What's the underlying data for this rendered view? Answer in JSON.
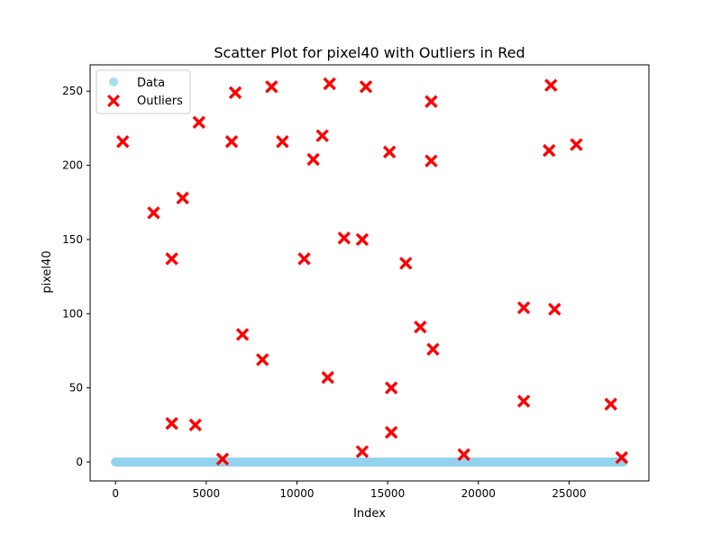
{
  "chart_data": {
    "type": "scatter",
    "title": "Scatter Plot for pixel40 with Outliers in Red",
    "xlabel": "Index",
    "ylabel": "pixel40",
    "xlim": [
      -1400,
      29400
    ],
    "ylim": [
      -12.75,
      267.75
    ],
    "xticks": [
      0,
      5000,
      10000,
      15000,
      20000,
      25000
    ],
    "yticks": [
      0,
      50,
      100,
      150,
      200,
      250
    ],
    "grid": false,
    "legend_position": "top-left",
    "data_series": {
      "name": "Data",
      "color": "#87ceeb",
      "x_range": [
        0,
        27999
      ],
      "y_value": 0
    },
    "series": [
      {
        "name": "Outliers",
        "color": "#ff0000",
        "marker": "X",
        "points": [
          {
            "x": 400,
            "y": 216
          },
          {
            "x": 2100,
            "y": 168
          },
          {
            "x": 3100,
            "y": 137
          },
          {
            "x": 3100,
            "y": 26
          },
          {
            "x": 3700,
            "y": 178
          },
          {
            "x": 4400,
            "y": 25
          },
          {
            "x": 4600,
            "y": 229
          },
          {
            "x": 5900,
            "y": 2
          },
          {
            "x": 6400,
            "y": 216
          },
          {
            "x": 6600,
            "y": 249
          },
          {
            "x": 7000,
            "y": 86
          },
          {
            "x": 8100,
            "y": 69
          },
          {
            "x": 8600,
            "y": 253
          },
          {
            "x": 9200,
            "y": 216
          },
          {
            "x": 10400,
            "y": 137
          },
          {
            "x": 10900,
            "y": 204
          },
          {
            "x": 11400,
            "y": 220
          },
          {
            "x": 11700,
            "y": 57
          },
          {
            "x": 11800,
            "y": 255
          },
          {
            "x": 12600,
            "y": 151
          },
          {
            "x": 13600,
            "y": 150
          },
          {
            "x": 13600,
            "y": 7
          },
          {
            "x": 13800,
            "y": 253
          },
          {
            "x": 15100,
            "y": 209
          },
          {
            "x": 15200,
            "y": 50
          },
          {
            "x": 15200,
            "y": 20
          },
          {
            "x": 16000,
            "y": 134
          },
          {
            "x": 16800,
            "y": 91
          },
          {
            "x": 17400,
            "y": 203
          },
          {
            "x": 17400,
            "y": 243
          },
          {
            "x": 17500,
            "y": 76
          },
          {
            "x": 19200,
            "y": 5
          },
          {
            "x": 22500,
            "y": 104
          },
          {
            "x": 22500,
            "y": 41
          },
          {
            "x": 23900,
            "y": 210
          },
          {
            "x": 24000,
            "y": 254
          },
          {
            "x": 24200,
            "y": 103
          },
          {
            "x": 25400,
            "y": 214
          },
          {
            "x": 27300,
            "y": 39
          },
          {
            "x": 27900,
            "y": 3
          }
        ]
      }
    ]
  }
}
